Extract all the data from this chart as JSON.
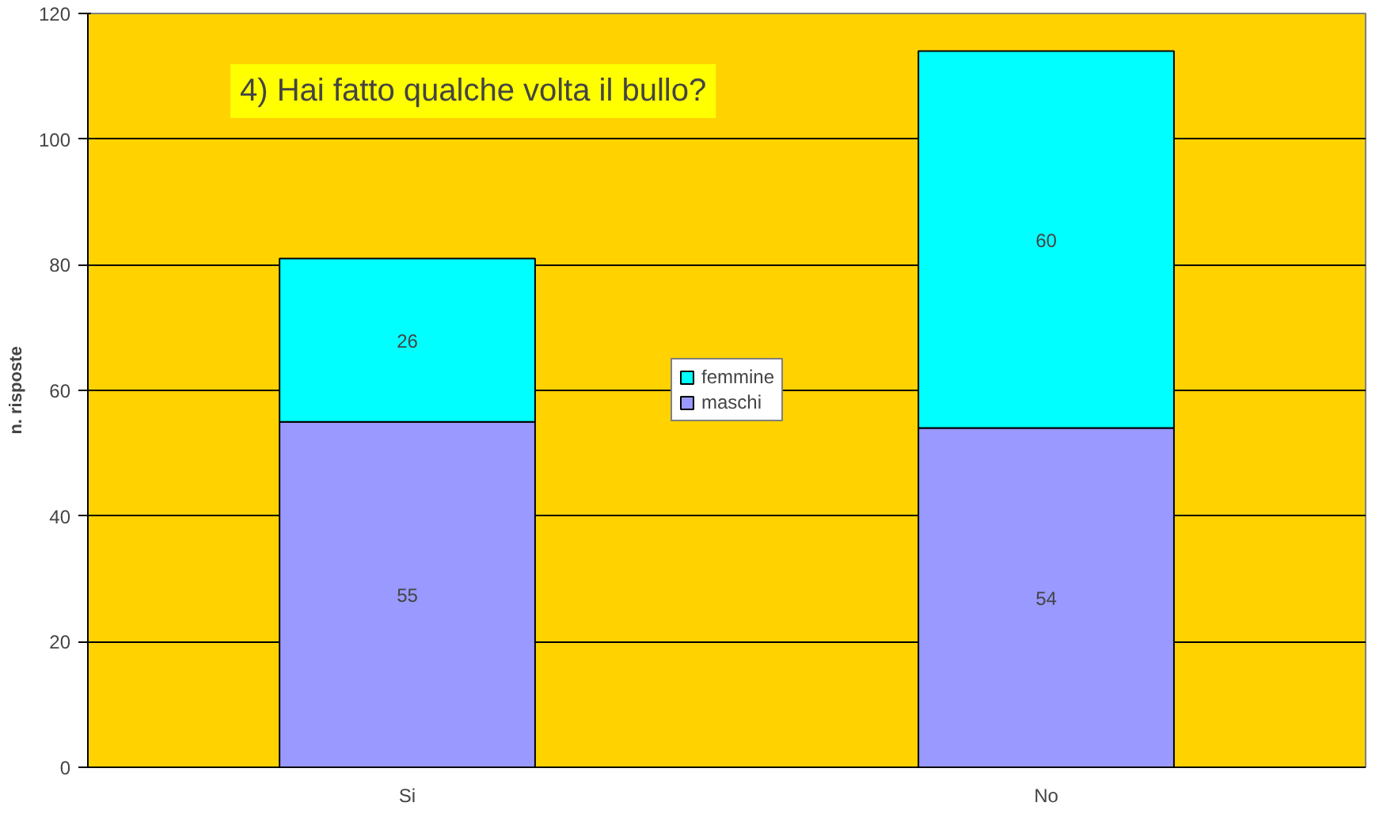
{
  "chart_data": {
    "type": "bar",
    "title": "4) Hai fatto qualche volta il bullo?",
    "ylabel": "n. risposte",
    "categories": [
      "Si",
      "No"
    ],
    "series": [
      {
        "name": "maschi",
        "color": "#9999ff",
        "values": [
          55,
          54
        ]
      },
      {
        "name": "femmine",
        "color": "#00ffff",
        "values": [
          26,
          60
        ]
      }
    ],
    "stacked": true,
    "data_labels": true,
    "ylim": [
      0,
      120
    ],
    "yticks": [
      0,
      20,
      40,
      60,
      80,
      100,
      120
    ],
    "grid": "y",
    "legend": "center"
  }
}
